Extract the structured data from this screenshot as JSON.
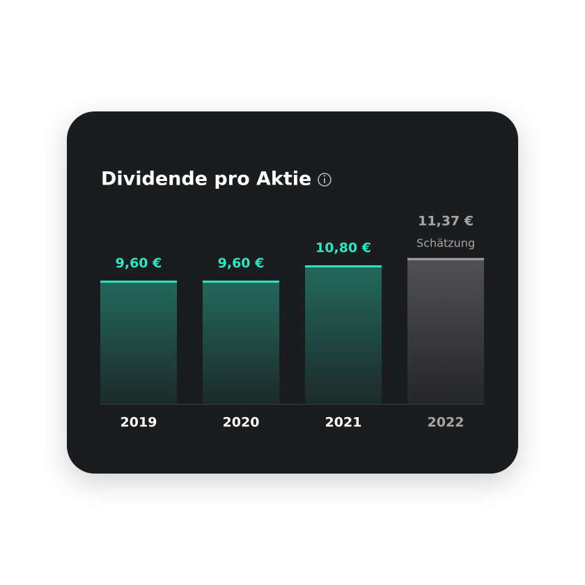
{
  "chart_data": {
    "type": "bar",
    "title": "Dividende pro Aktie",
    "categories": [
      "2019",
      "2020",
      "2021",
      "2022"
    ],
    "values": [
      9.6,
      9.6,
      10.8,
      11.37
    ],
    "value_labels": [
      "9,60 €",
      "9,60 €",
      "10,80 €",
      "11,37 €"
    ],
    "colors": [
      "#2ee6c0",
      "#2ee6c0",
      "#2ee6c0",
      "#a6a6a6"
    ],
    "annotation": {
      "text": "Schätzung",
      "index": 3
    }
  }
}
